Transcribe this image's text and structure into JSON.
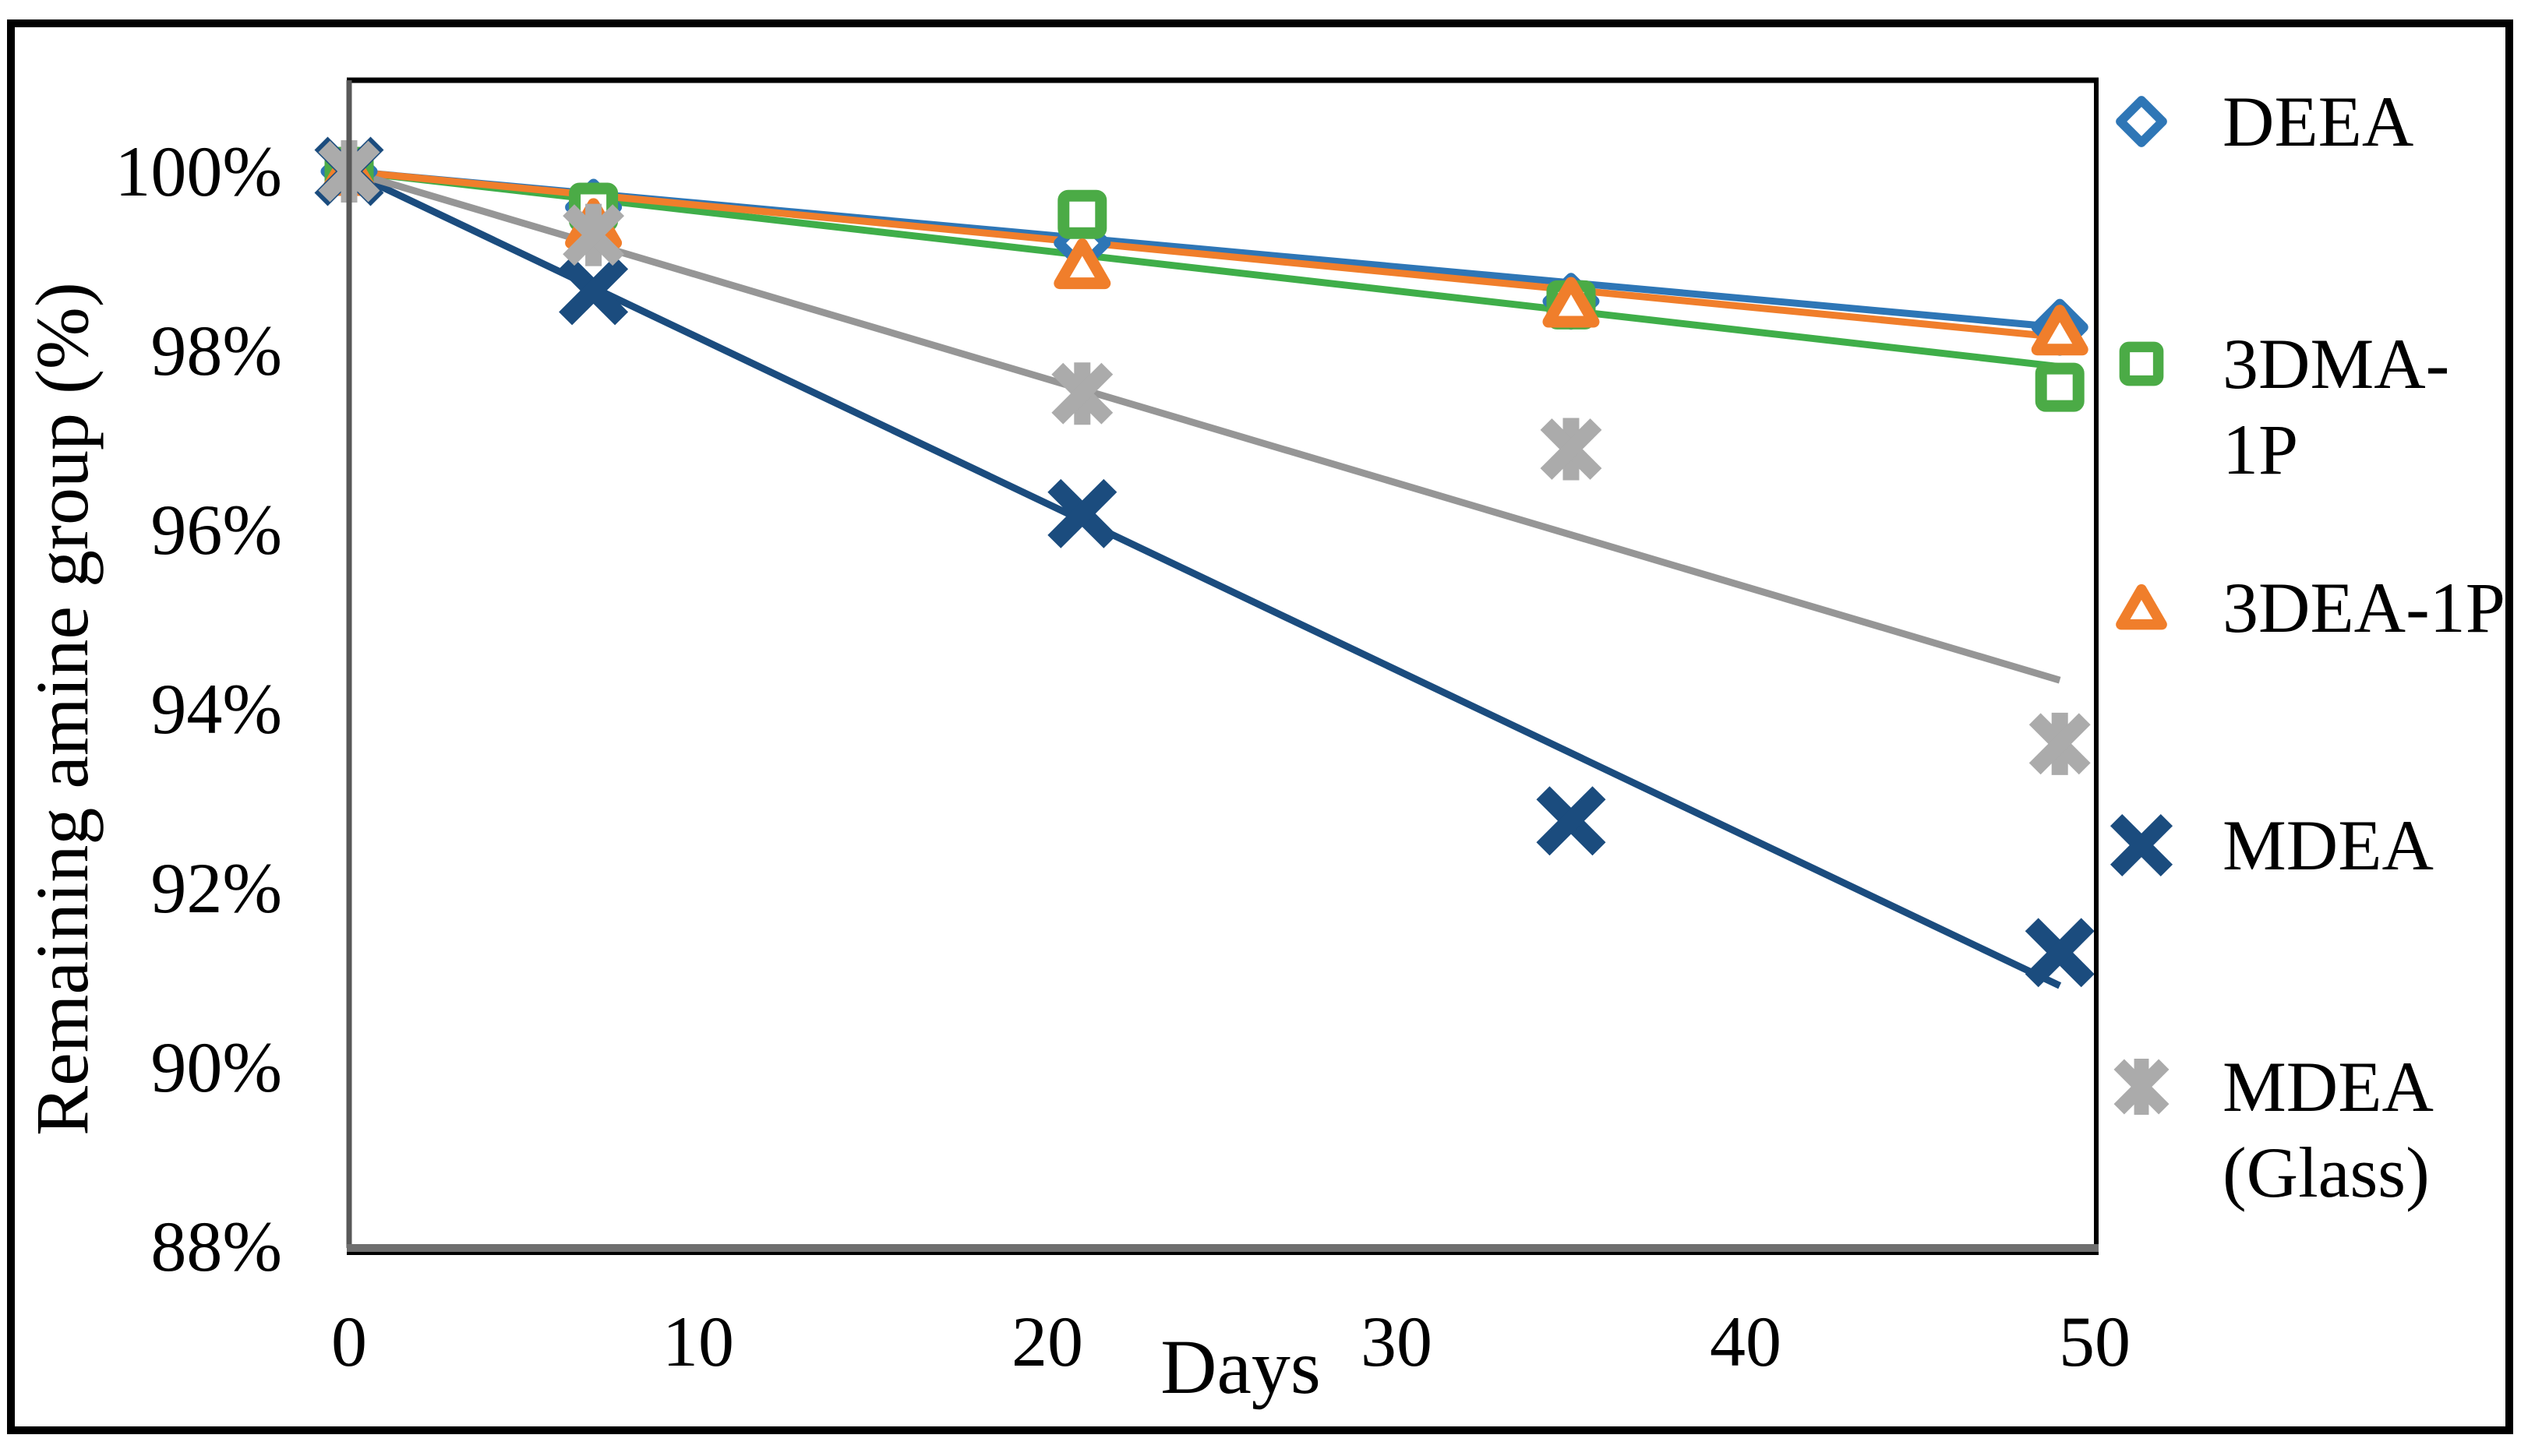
{
  "figure": {
    "background": "#ffffff",
    "outer_border_color": "#000000"
  },
  "chart_data": {
    "type": "scatter",
    "title": "",
    "xlabel": "Days",
    "ylabel": "Remaining amine group (%)",
    "x": [
      0,
      7,
      21,
      35,
      49
    ],
    "x_ticks": [
      "0",
      "10",
      "20",
      "30",
      "40",
      "50"
    ],
    "x_tick_values": [
      0,
      10,
      20,
      30,
      40,
      50
    ],
    "y_ticks": [
      "100%",
      "98%",
      "96%",
      "94%",
      "92%",
      "90%",
      "88%"
    ],
    "y_tick_values": [
      100,
      98,
      96,
      94,
      92,
      90,
      88
    ],
    "xlim": [
      0,
      50
    ],
    "ylim": [
      88,
      101
    ],
    "grid": false,
    "legend_position": "right",
    "series": [
      {
        "name": "DEEA",
        "legend_lines": [
          "DEEA"
        ],
        "marker": "diamond",
        "color": "#2E76B6",
        "line_color": "#2E76B6",
        "values": [
          100,
          99.6,
          99.2,
          98.55,
          98.26
        ],
        "trendline": {
          "start_day": 0,
          "start_value": 100,
          "end_day": 49,
          "end_value": 98.26
        }
      },
      {
        "name": "3DMA-1P",
        "legend_lines": [
          "3DMA-",
          "1P"
        ],
        "marker": "square",
        "color": "#4BAB46",
        "line_color": "#3FAE49",
        "values": [
          100,
          99.6,
          99.52,
          98.51,
          97.59
        ],
        "trendline": {
          "start_day": 0,
          "start_value": 100,
          "end_day": 49,
          "end_value": 97.82
        }
      },
      {
        "name": "3DEA-1P",
        "legend_lines": [
          "3DEA-1P"
        ],
        "marker": "triangle",
        "color": "#F07E2B",
        "line_color": "#F07E2B",
        "values": [
          100,
          99.41,
          98.96,
          98.53,
          98.22
        ],
        "trendline": {
          "start_day": 0,
          "start_value": 100,
          "end_day": 49,
          "end_value": 98.15
        }
      },
      {
        "name": "MDEA",
        "legend_lines": [
          "MDEA"
        ],
        "marker": "x",
        "color": "#1B4C7E",
        "line_color": "#1B4C7E",
        "values": [
          100,
          98.67,
          96.18,
          92.75,
          91.28
        ],
        "trendline": {
          "start_day": 0,
          "start_value": 100,
          "end_day": 49,
          "end_value": 90.91
        }
      },
      {
        "name": "MDEA (Glass)",
        "legend_lines": [
          "MDEA",
          "(Glass)"
        ],
        "marker": "asterisk",
        "color": "#ABABAB",
        "line_color": "#969696",
        "values": [
          100,
          99.29,
          97.52,
          96.9,
          93.61
        ],
        "trendline": {
          "start_day": 0,
          "start_value": 100,
          "end_day": 49,
          "end_value": 94.32
        }
      }
    ]
  }
}
